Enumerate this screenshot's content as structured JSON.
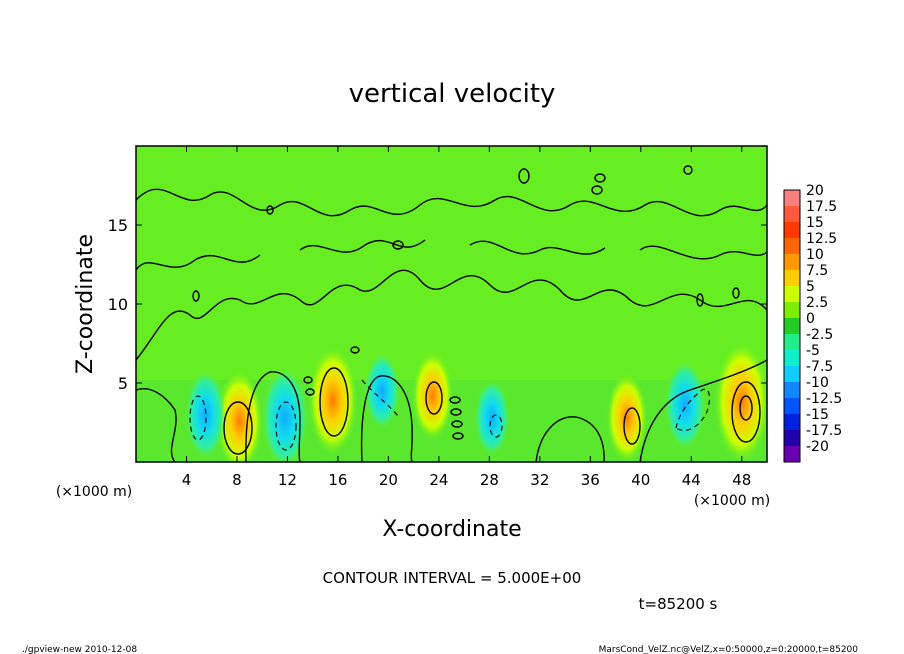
{
  "chart_data": {
    "type": "heatmap",
    "title": "vertical velocity",
    "xlabel": "X-coordinate",
    "ylabel": "Z-coordinate",
    "x_unit_left": "(×1000 m)",
    "x_unit_right": "(×1000 m)",
    "xlim": [
      0,
      50
    ],
    "ylim": [
      0,
      20
    ],
    "x_ticks": [
      4,
      8,
      12,
      16,
      20,
      24,
      28,
      32,
      36,
      40,
      44,
      48
    ],
    "x_tick_labels": [
      "4",
      "8",
      "12",
      "16",
      "20",
      "24",
      "28",
      "32",
      "36",
      "40",
      "44",
      "48"
    ],
    "y_ticks": [
      5,
      10,
      15
    ],
    "y_tick_labels": [
      "5",
      "10",
      "15"
    ],
    "contour_interval_text": "CONTOUR INTERVAL = 5.000E+00",
    "time_text": "t=85200 s",
    "footer_left": "./gpview-new  2010-12-08",
    "footer_right": "MarsCond_VelZ.nc@VelZ,x=0:50000,z=0:20000,t=85200",
    "colorbar": {
      "labels": [
        "20",
        "17.5",
        "15",
        "12.5",
        "10",
        "7.5",
        "5",
        "2.5",
        "0",
        "-2.5",
        "-5",
        "-7.5",
        "-10",
        "-12.5",
        "-15",
        "-17.5",
        "-20"
      ],
      "colors": [
        "#fa8080",
        "#ff5a3c",
        "#ff3a00",
        "#ff6600",
        "#ff9900",
        "#ffcc00",
        "#ccff00",
        "#80ee00",
        "#22cc22",
        "#22ee88",
        "#11eecc",
        "#11ccff",
        "#1188ff",
        "#0055ff",
        "#0022dd",
        "#2200aa",
        "#6a00b0"
      ]
    },
    "background_color": "#66ee22",
    "features": [
      {
        "kind": "updraft",
        "x": 8.2,
        "z": 2.6,
        "peak": 8
      },
      {
        "kind": "downdraft",
        "x": 5.5,
        "z": 3.0,
        "peak": -6
      },
      {
        "kind": "downdraft",
        "x": 11.8,
        "z": 2.8,
        "peak": -8
      },
      {
        "kind": "updraft",
        "x": 15.6,
        "z": 3.9,
        "peak": 9
      },
      {
        "kind": "downdraft",
        "x": 19.5,
        "z": 4.5,
        "peak": -4
      },
      {
        "kind": "updraft",
        "x": 23.5,
        "z": 4.2,
        "peak": 6
      },
      {
        "kind": "downdraft",
        "x": 28.2,
        "z": 2.8,
        "peak": -4
      },
      {
        "kind": "updraft",
        "x": 38.9,
        "z": 2.8,
        "peak": 6
      },
      {
        "kind": "downdraft",
        "x": 43.5,
        "z": 3.6,
        "peak": -6
      },
      {
        "kind": "updraft",
        "x": 48.0,
        "z": 3.8,
        "peak": 11
      }
    ]
  }
}
